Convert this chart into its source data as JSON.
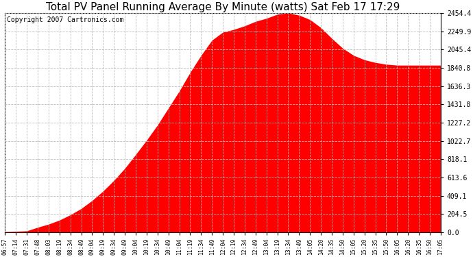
{
  "title": "Total PV Panel Running Average By Minute (watts) Sat Feb 17 17:29",
  "copyright": "Copyright 2007 Cartronics.com",
  "fill_color": "#FF0000",
  "background_color": "#FFFFFF",
  "plot_bg_color": "#FFFFFF",
  "grid_color": "#BBBBBB",
  "grid_style": "--",
  "yticks": [
    0.0,
    204.5,
    409.1,
    613.6,
    818.1,
    1022.7,
    1227.2,
    1431.8,
    1636.3,
    1840.8,
    2045.4,
    2249.9,
    2454.4
  ],
  "xtick_labels": [
    "06:57",
    "07:14",
    "07:31",
    "07:48",
    "08:03",
    "08:19",
    "08:34",
    "08:49",
    "09:04",
    "09:19",
    "09:34",
    "09:49",
    "10:04",
    "10:19",
    "10:34",
    "10:49",
    "11:04",
    "11:19",
    "11:34",
    "11:49",
    "12:04",
    "12:19",
    "12:34",
    "12:49",
    "13:04",
    "13:19",
    "13:34",
    "13:49",
    "14:05",
    "14:20",
    "14:35",
    "14:50",
    "15:05",
    "15:20",
    "15:35",
    "15:50",
    "16:05",
    "16:20",
    "16:35",
    "16:50",
    "17:05"
  ],
  "y_values": [
    5,
    10,
    15,
    55,
    90,
    135,
    195,
    265,
    355,
    460,
    580,
    715,
    870,
    1030,
    1200,
    1390,
    1580,
    1790,
    1980,
    2150,
    2240,
    2270,
    2310,
    2360,
    2395,
    2440,
    2454,
    2430,
    2380,
    2290,
    2170,
    2060,
    1980,
    1930,
    1900,
    1880,
    1870,
    1870,
    1870,
    1870,
    1870
  ],
  "ylim": [
    0,
    2454.4
  ],
  "title_fontsize": 11,
  "copyright_fontsize": 7
}
